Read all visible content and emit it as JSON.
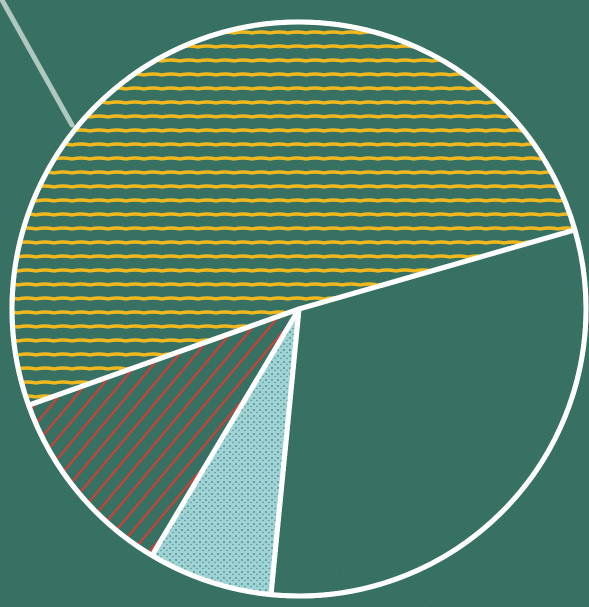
{
  "chart_data": {
    "type": "pie",
    "title": "",
    "slices": [
      {
        "value": 51,
        "color": "#f0b81c",
        "fill": "horizontal-hatch"
      },
      {
        "value": 11,
        "color": "#e8352f",
        "fill": "diagonal-hatch"
      },
      {
        "value": 7,
        "color": "#9fd3d6",
        "fill": "chalk-solid"
      },
      {
        "value": 31,
        "color": "#2f6b5c",
        "fill": "none"
      }
    ],
    "outline_color": "#ffffff",
    "background": "chalkboard-green"
  }
}
